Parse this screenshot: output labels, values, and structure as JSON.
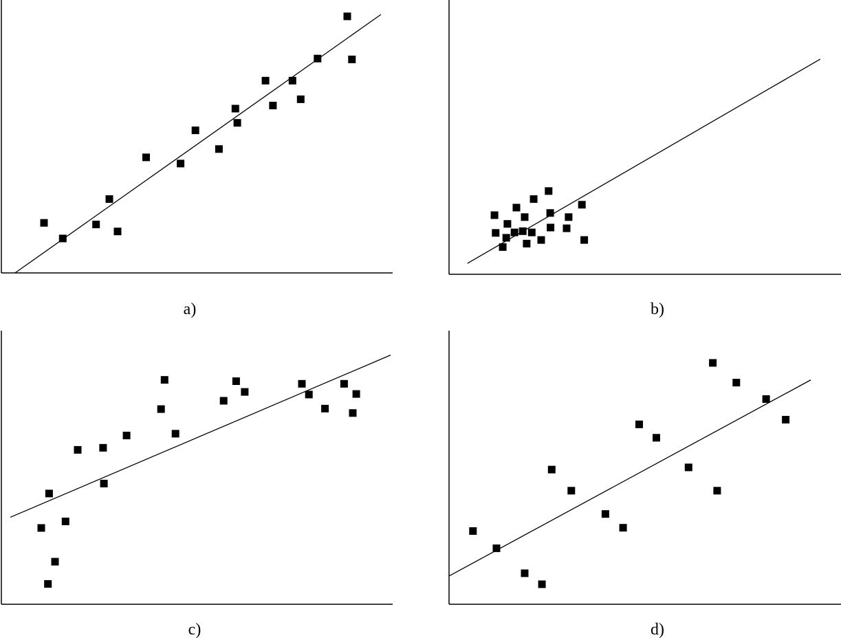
{
  "figure": {
    "panel_labels": [
      "a)",
      "b)",
      "c)",
      "d)"
    ]
  },
  "colors": {
    "background": "#ffffff",
    "ink": "#000000"
  },
  "chart_data": [
    {
      "type": "scatter",
      "panel": "a)",
      "title": "",
      "xlabel": "",
      "ylabel": "",
      "grid": false,
      "xlim": [
        0,
        100
      ],
      "ylim": [
        0,
        100
      ],
      "points": [
        {
          "x": 10.9,
          "y": 19.3
        },
        {
          "x": 15.7,
          "y": 13.3
        },
        {
          "x": 24.2,
          "y": 18.7
        },
        {
          "x": 27.6,
          "y": 28.5
        },
        {
          "x": 29.7,
          "y": 16.0
        },
        {
          "x": 37.0,
          "y": 44.6
        },
        {
          "x": 45.8,
          "y": 42.2
        },
        {
          "x": 49.6,
          "y": 55.0
        },
        {
          "x": 55.6,
          "y": 47.8
        },
        {
          "x": 59.8,
          "y": 63.4
        },
        {
          "x": 60.3,
          "y": 57.9
        },
        {
          "x": 67.5,
          "y": 74.2
        },
        {
          "x": 69.4,
          "y": 64.6
        },
        {
          "x": 74.4,
          "y": 74.2
        },
        {
          "x": 76.5,
          "y": 67.0
        },
        {
          "x": 80.8,
          "y": 82.7
        },
        {
          "x": 88.4,
          "y": 99.0
        },
        {
          "x": 89.6,
          "y": 82.4
        }
      ],
      "fit_line": {
        "x": [
          3.5,
          97.0
        ],
        "y": [
          0.0,
          99.7
        ]
      }
    },
    {
      "type": "scatter",
      "panel": "b)",
      "title": "",
      "xlabel": "",
      "ylabel": "",
      "grid": false,
      "xlim": [
        0,
        100
      ],
      "ylim": [
        0,
        100
      ],
      "points": [
        {
          "x": 11.6,
          "y": 24.3
        },
        {
          "x": 11.9,
          "y": 17.0
        },
        {
          "x": 13.7,
          "y": 11.2
        },
        {
          "x": 14.6,
          "y": 15.0
        },
        {
          "x": 14.9,
          "y": 20.7
        },
        {
          "x": 16.7,
          "y": 17.2
        },
        {
          "x": 17.2,
          "y": 27.4
        },
        {
          "x": 18.8,
          "y": 17.7
        },
        {
          "x": 19.3,
          "y": 23.5
        },
        {
          "x": 19.8,
          "y": 12.6
        },
        {
          "x": 21.1,
          "y": 17.2
        },
        {
          "x": 21.6,
          "y": 30.9
        },
        {
          "x": 23.5,
          "y": 14.1
        },
        {
          "x": 25.4,
          "y": 34.2
        },
        {
          "x": 25.8,
          "y": 25.2
        },
        {
          "x": 25.9,
          "y": 19.2
        },
        {
          "x": 30.0,
          "y": 18.9
        },
        {
          "x": 30.5,
          "y": 23.5
        },
        {
          "x": 33.9,
          "y": 28.6
        },
        {
          "x": 34.5,
          "y": 14.1
        }
      ],
      "fit_line": {
        "x": [
          4.7,
          94.7
        ],
        "y": [
          4.5,
          88.4
        ]
      }
    },
    {
      "type": "scatter",
      "panel": "c)",
      "title": "",
      "xlabel": "",
      "ylabel": "",
      "grid": false,
      "xlim": [
        0,
        100
      ],
      "ylim": [
        0,
        100
      ],
      "points": [
        {
          "x": 10.2,
          "y": 29.2
        },
        {
          "x": 11.9,
          "y": 7.8
        },
        {
          "x": 12.2,
          "y": 42.4
        },
        {
          "x": 13.7,
          "y": 16.3
        },
        {
          "x": 16.4,
          "y": 31.7
        },
        {
          "x": 19.5,
          "y": 59.1
        },
        {
          "x": 26.0,
          "y": 59.9
        },
        {
          "x": 26.2,
          "y": 46.2
        },
        {
          "x": 32.0,
          "y": 64.6
        },
        {
          "x": 40.8,
          "y": 74.7
        },
        {
          "x": 41.7,
          "y": 85.9
        },
        {
          "x": 44.5,
          "y": 65.3
        },
        {
          "x": 56.8,
          "y": 77.9
        },
        {
          "x": 60.0,
          "y": 85.4
        },
        {
          "x": 62.2,
          "y": 81.3
        },
        {
          "x": 76.8,
          "y": 84.4
        },
        {
          "x": 78.6,
          "y": 80.3
        },
        {
          "x": 82.7,
          "y": 74.9
        },
        {
          "x": 87.6,
          "y": 84.4
        },
        {
          "x": 89.8,
          "y": 73.2
        },
        {
          "x": 90.7,
          "y": 80.5
        }
      ],
      "fit_line": {
        "x": [
          2.3,
          99.5
        ],
        "y": [
          33.3,
          95.4
        ]
      }
    },
    {
      "type": "scatter",
      "panel": "d)",
      "title": "",
      "xlabel": "",
      "ylabel": "",
      "grid": false,
      "xlim": [
        0,
        100
      ],
      "ylim": [
        0,
        100
      ],
      "points": [
        {
          "x": 6.1,
          "y": 26.7
        },
        {
          "x": 12.1,
          "y": 20.4
        },
        {
          "x": 19.3,
          "y": 11.3
        },
        {
          "x": 23.7,
          "y": 7.3
        },
        {
          "x": 26.2,
          "y": 49.1
        },
        {
          "x": 31.2,
          "y": 41.4
        },
        {
          "x": 39.9,
          "y": 32.9
        },
        {
          "x": 44.4,
          "y": 27.9
        },
        {
          "x": 48.5,
          "y": 65.6
        },
        {
          "x": 52.9,
          "y": 60.7
        },
        {
          "x": 61.1,
          "y": 49.9
        },
        {
          "x": 67.3,
          "y": 88.0
        },
        {
          "x": 68.4,
          "y": 41.4
        },
        {
          "x": 73.3,
          "y": 80.8
        },
        {
          "x": 80.9,
          "y": 74.8
        },
        {
          "x": 85.9,
          "y": 67.3
        }
      ],
      "fit_line": {
        "x": [
          0.0,
          92.3
        ],
        "y": [
          10.3,
          81.8
        ]
      }
    }
  ]
}
